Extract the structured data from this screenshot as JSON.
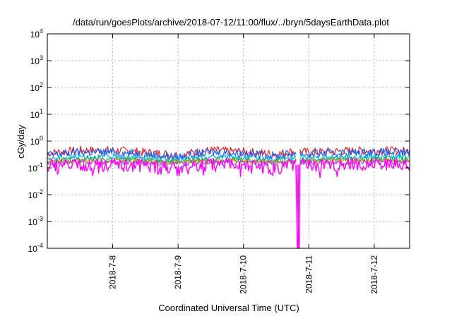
{
  "chart_data": {
    "type": "line",
    "title": "/data/run/goesPlots/archive/2018-07-12/11:00/flux/../bryn/5daysEarthData.plot",
    "xlabel": "Coordinated Universal Time (UTC)",
    "ylabel": "cGy/day",
    "y_scale": "log",
    "ylim": [
      0.0001,
      10000
    ],
    "y_ticks": [
      {
        "base": "10",
        "exp": "-4",
        "value": 0.0001
      },
      {
        "base": "10",
        "exp": "-3",
        "value": 0.001
      },
      {
        "base": "10",
        "exp": "-2",
        "value": 0.01
      },
      {
        "base": "10",
        "exp": "-1",
        "value": 0.1
      },
      {
        "base": "10",
        "exp": "0",
        "value": 1
      },
      {
        "base": "10",
        "exp": "1",
        "value": 10
      },
      {
        "base": "10",
        "exp": "2",
        "value": 100
      },
      {
        "base": "10",
        "exp": "3",
        "value": 1000
      },
      {
        "base": "10",
        "exp": "4",
        "value": 10000
      }
    ],
    "xlim": [
      "2018-07-07 00:00",
      "2018-07-12 13:00"
    ],
    "x_ticks": [
      {
        "label": "2018-7-8",
        "date": "2018-07-08"
      },
      {
        "label": "2018-7-9",
        "date": "2018-07-09"
      },
      {
        "label": "2018-7-10",
        "date": "2018-07-10"
      },
      {
        "label": "2018-7-11",
        "date": "2018-07-11"
      },
      {
        "label": "2018-7-12",
        "date": "2018-07-12"
      }
    ],
    "grid": true,
    "data_gap": [
      "2018-07-10 19:30",
      "2018-07-10 20:30"
    ],
    "series": [
      {
        "color": "#e8202a",
        "x": [
          "2018-07-07 00:00",
          "2018-07-07 12:00",
          "2018-07-08 00:00",
          "2018-07-08 12:00",
          "2018-07-09 00:00",
          "2018-07-09 12:00",
          "2018-07-10 00:00",
          "2018-07-10 12:00",
          "2018-07-10 19:00",
          "2018-07-11 00:00",
          "2018-07-11 12:00",
          "2018-07-12 00:00",
          "2018-07-12 13:00"
        ],
        "values": [
          0.35,
          0.45,
          0.45,
          0.38,
          0.3,
          0.45,
          0.4,
          0.32,
          0.42,
          0.38,
          0.42,
          0.45,
          0.42
        ]
      },
      {
        "color": "#1565ff",
        "x": [
          "2018-07-07 00:00",
          "2018-07-07 12:00",
          "2018-07-08 00:00",
          "2018-07-08 12:00",
          "2018-07-09 00:00",
          "2018-07-09 12:00",
          "2018-07-10 00:00",
          "2018-07-10 12:00",
          "2018-07-10 19:00",
          "2018-07-11 00:00",
          "2018-07-11 12:00",
          "2018-07-12 00:00",
          "2018-07-12 13:00"
        ],
        "values": [
          0.3,
          0.38,
          0.38,
          0.32,
          0.25,
          0.38,
          0.34,
          0.27,
          0.36,
          0.32,
          0.36,
          0.38,
          0.36
        ]
      },
      {
        "color": "#00b8e6",
        "x": [
          "2018-07-07 00:00",
          "2018-07-07 12:00",
          "2018-07-08 00:00",
          "2018-07-08 12:00",
          "2018-07-09 00:00",
          "2018-07-09 12:00",
          "2018-07-10 00:00",
          "2018-07-10 12:00",
          "2018-07-10 19:00",
          "2018-07-11 00:00",
          "2018-07-11 12:00",
          "2018-07-12 00:00",
          "2018-07-12 13:00"
        ],
        "values": [
          0.22,
          0.26,
          0.26,
          0.23,
          0.19,
          0.26,
          0.24,
          0.2,
          0.25,
          0.23,
          0.25,
          0.26,
          0.25
        ]
      },
      {
        "color": "#22b14c",
        "x": [
          "2018-07-07 00:00",
          "2018-07-07 12:00",
          "2018-07-08 00:00",
          "2018-07-08 12:00",
          "2018-07-09 00:00",
          "2018-07-09 12:00",
          "2018-07-10 00:00",
          "2018-07-10 12:00",
          "2018-07-10 19:00",
          "2018-07-11 00:00",
          "2018-07-11 12:00",
          "2018-07-12 00:00",
          "2018-07-12 13:00"
        ],
        "values": [
          0.19,
          0.21,
          0.21,
          0.2,
          0.17,
          0.21,
          0.2,
          0.18,
          0.21,
          0.2,
          0.21,
          0.21,
          0.21
        ]
      },
      {
        "color": "#d4a017",
        "x": [
          "2018-07-07 00:00",
          "2018-07-07 12:00",
          "2018-07-08 00:00",
          "2018-07-08 12:00",
          "2018-07-09 00:00",
          "2018-07-09 12:00",
          "2018-07-10 00:00",
          "2018-07-10 12:00",
          "2018-07-10 19:00",
          "2018-07-11 00:00",
          "2018-07-11 12:00",
          "2018-07-12 00:00",
          "2018-07-12 13:00"
        ],
        "values": [
          0.17,
          0.18,
          0.18,
          0.175,
          0.16,
          0.18,
          0.175,
          0.165,
          0.18,
          0.175,
          0.18,
          0.18,
          0.18
        ]
      },
      {
        "color": "#9b59b6",
        "x": [
          "2018-07-07 00:00",
          "2018-07-07 12:00",
          "2018-07-08 00:00",
          "2018-07-08 12:00",
          "2018-07-09 00:00",
          "2018-07-09 12:00",
          "2018-07-10 00:00",
          "2018-07-10 12:00",
          "2018-07-10 19:00",
          "2018-07-11 00:00",
          "2018-07-11 12:00",
          "2018-07-12 00:00",
          "2018-07-12 13:00"
        ],
        "values": [
          0.16,
          0.165,
          0.165,
          0.16,
          0.15,
          0.165,
          0.16,
          0.155,
          0.165,
          0.16,
          0.165,
          0.165,
          0.165
        ]
      },
      {
        "color": "#ff00ff",
        "x": [
          "2018-07-07 00:00",
          "2018-07-07 12:00",
          "2018-07-08 00:00",
          "2018-07-08 12:00",
          "2018-07-09 00:00",
          "2018-07-09 12:00",
          "2018-07-10 00:00",
          "2018-07-10 12:00",
          "2018-07-10 19:00",
          "2018-07-11 00:00",
          "2018-07-11 12:00",
          "2018-07-12 00:00",
          "2018-07-12 13:00"
        ],
        "values": [
          0.12,
          0.13,
          0.13,
          0.12,
          0.08,
          0.13,
          0.12,
          0.09,
          0.13,
          0.12,
          0.13,
          0.13,
          0.12
        ]
      }
    ]
  }
}
